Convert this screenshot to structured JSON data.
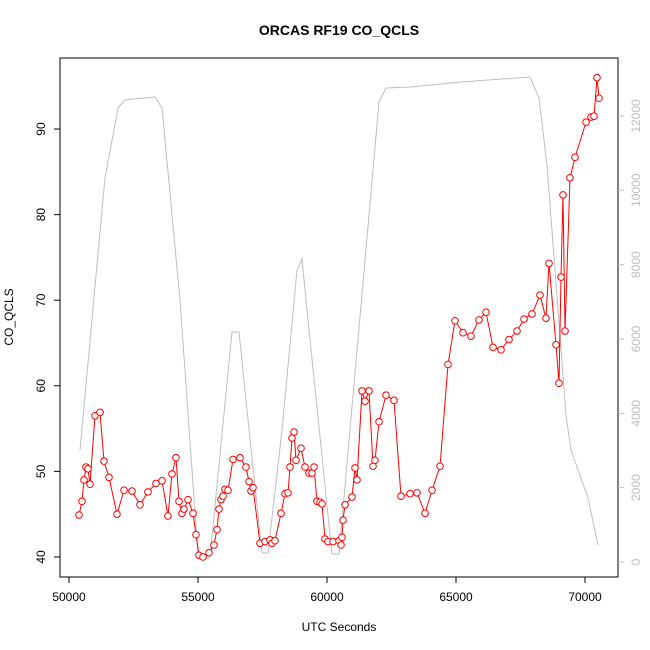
{
  "chart_data": {
    "type": "line",
    "title": "ORCAS RF19 CO_QCLS",
    "xlabel": "UTC Seconds",
    "ylabel": "CO_QCLS",
    "xlim": [
      49651,
      71279
    ],
    "xticks": [
      50000,
      55000,
      60000,
      65000,
      70000
    ],
    "ylim": [
      37.66,
      98.3
    ],
    "yticks": [
      40,
      50,
      60,
      70,
      80,
      90
    ],
    "y2lim": [
      -404,
      13560
    ],
    "y2ticks": [
      0,
      2000,
      4000,
      6000,
      8000,
      10000,
      12000
    ],
    "series": [
      {
        "color": "#bebebe",
        "axis": "y2",
        "markers": false,
        "x": [
          50426,
          51395,
          51899,
          52171,
          53333,
          53605,
          54302,
          55000,
          55194,
          55465,
          56318,
          56589,
          56899,
          57481,
          57713,
          58256,
          58837,
          59031,
          59264,
          60194,
          60465,
          62016,
          62287,
          63256,
          65194,
          67868,
          68217,
          68527,
          69264,
          69457,
          70116,
          70271,
          70504
        ],
        "values": [
          3013,
          10331,
          12214,
          12430,
          12510,
          12214,
          7049,
          188,
          54,
          135,
          6188,
          6188,
          4089,
          242,
          242,
          3551,
          7856,
          8152,
          6511,
          215,
          215,
          12376,
          12752,
          12779,
          12914,
          13048,
          12483,
          10681,
          3955,
          3013,
          1722,
          1211,
          457
        ]
      },
      {
        "color": "#ff0000",
        "axis": "y",
        "markers": true,
        "x": [
          50388,
          50504,
          50581,
          50659,
          50736,
          50814,
          51008,
          51202,
          51357,
          51550,
          51860,
          52132,
          52442,
          52752,
          53062,
          53372,
          53605,
          53837,
          53992,
          54147,
          54264,
          54380,
          54457,
          54612,
          54806,
          54922,
          55039,
          55194,
          55426,
          55620,
          55736,
          55814,
          55891,
          55969,
          56046,
          56163,
          56357,
          56628,
          56860,
          56977,
          57054,
          57132,
          57403,
          57597,
          57791,
          57868,
          57984,
          58217,
          58372,
          58488,
          58566,
          58643,
          58721,
          58798,
          58992,
          59147,
          59302,
          59419,
          59496,
          59612,
          59729,
          59806,
          59922,
          60039,
          60233,
          60465,
          60543,
          60581,
          60620,
          60698,
          60969,
          61085,
          61163,
          61357,
          61473,
          61628,
          61783,
          61860,
          62016,
          62287,
          62597,
          62868,
          63217,
          63488,
          63798,
          64070,
          64380,
          64690,
          64961,
          65271,
          65581,
          65891,
          66163,
          66434,
          66744,
          67054,
          67364,
          67636,
          67946,
          68256,
          68488,
          68605,
          68876,
          68992,
          69070,
          69147,
          69225,
          69419,
          69612,
          70039,
          70233,
          70349,
          70465,
          70543
        ],
        "values": [
          44.9,
          46.5,
          49.0,
          50.5,
          50.3,
          48.5,
          56.5,
          56.9,
          51.2,
          49.3,
          45.0,
          47.8,
          47.7,
          46.1,
          47.6,
          48.6,
          48.9,
          44.8,
          49.7,
          51.6,
          46.5,
          45.1,
          45.6,
          46.7,
          45.1,
          42.6,
          40.2,
          40.0,
          40.5,
          41.4,
          43.2,
          45.6,
          46.7,
          47.1,
          47.9,
          47.8,
          51.4,
          51.6,
          50.5,
          48.8,
          47.7,
          48.1,
          41.6,
          41.8,
          42.0,
          41.6,
          41.9,
          45.1,
          47.4,
          47.5,
          50.5,
          53.9,
          54.6,
          51.3,
          52.7,
          50.5,
          49.8,
          49.8,
          50.5,
          46.5,
          46.4,
          46.2,
          42.1,
          41.8,
          41.8,
          41.9,
          41.4,
          42.3,
          44.3,
          46.1,
          47.0,
          50.4,
          49.0,
          59.4,
          58.2,
          59.4,
          50.6,
          51.3,
          55.8,
          58.9,
          58.3,
          47.1,
          47.4,
          47.5,
          45.1,
          47.8,
          50.6,
          62.5,
          67.6,
          66.2,
          65.8,
          67.7,
          68.6,
          64.5,
          64.2,
          65.4,
          66.4,
          67.8,
          68.4,
          70.6,
          67.9,
          74.3,
          64.8,
          60.3,
          72.7,
          82.3,
          66.4,
          84.3,
          86.7,
          90.8,
          91.4,
          91.5,
          96.0,
          93.6
        ]
      }
    ]
  }
}
